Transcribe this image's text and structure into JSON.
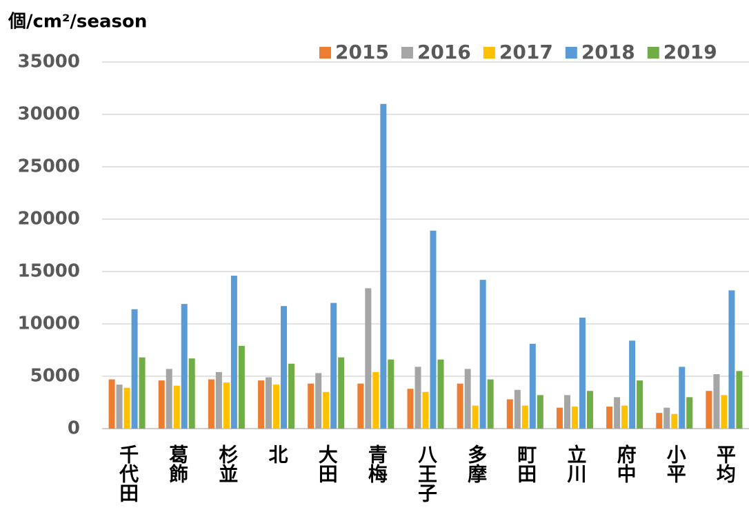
{
  "chart_data": {
    "type": "bar",
    "title": "個/cm²/season",
    "categories": [
      "千代田",
      "葛飾",
      "杉並",
      "北",
      "大田",
      "青梅",
      "八王子",
      "多摩",
      "町田",
      "立川",
      "府中",
      "小平",
      "平均"
    ],
    "series": [
      {
        "name": "2015",
        "color": "#ed7d31",
        "values": [
          4700,
          4600,
          4700,
          4600,
          4300,
          4300,
          3800,
          4300,
          2800,
          2000,
          2100,
          1500,
          3600
        ]
      },
      {
        "name": "2016",
        "color": "#a5a5a5",
        "values": [
          4200,
          5700,
          5400,
          4900,
          5300,
          13400,
          5900,
          5700,
          3700,
          3200,
          3000,
          2000,
          5200
        ]
      },
      {
        "name": "2017",
        "color": "#ffc000",
        "values": [
          3900,
          4100,
          4400,
          4200,
          3500,
          5400,
          3500,
          2200,
          2200,
          2100,
          2200,
          1400,
          3200
        ]
      },
      {
        "name": "2018",
        "color": "#5b9bd5",
        "values": [
          11400,
          11900,
          14600,
          11700,
          12000,
          31000,
          18900,
          14200,
          8100,
          10600,
          8400,
          5900,
          13200
        ]
      },
      {
        "name": "2019",
        "color": "#70ad47",
        "values": [
          6800,
          6700,
          7900,
          6200,
          6800,
          6600,
          6600,
          4700,
          3200,
          3600,
          4600,
          3000,
          5500
        ]
      }
    ],
    "ylim": [
      0,
      35000
    ],
    "yticks": [
      0,
      5000,
      10000,
      15000,
      20000,
      25000,
      30000,
      35000
    ],
    "grid": true,
    "legend": "top-right"
  }
}
